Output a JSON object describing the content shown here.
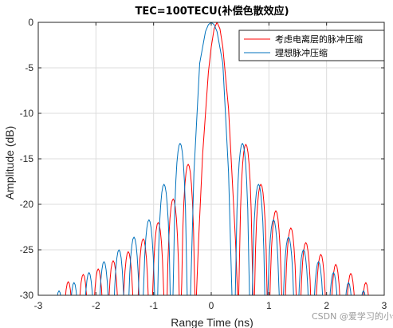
{
  "chart_data": {
    "type": "line",
    "title": "TEC=100TECU(补偿色散效应)",
    "xlabel": "Range Time (ns)",
    "ylabel": "Amplitude (dB)",
    "xlim": [
      -3,
      3
    ],
    "ylim": [
      -30,
      0
    ],
    "xticks": [
      -3,
      -2,
      -1,
      0,
      1,
      2,
      3
    ],
    "yticks": [
      0,
      -5,
      -10,
      -15,
      -20,
      -25,
      -30
    ],
    "xtick_labels": [
      "-3",
      "-2",
      "-1",
      "0",
      "1",
      "2",
      "3"
    ],
    "ytick_labels": [
      "0",
      "-5",
      "-10",
      "-15",
      "-20",
      "-25",
      "-30"
    ],
    "grid": true,
    "legend_position": "top-right",
    "series": [
      {
        "name": "考虑电离层的脉冲压缩",
        "color": "#ff0000",
        "peak_x": 0.1,
        "main_lobe_nulls_x": [
          -0.22,
          0.42
        ],
        "mainlobe_x": [
          -0.22,
          -0.15,
          -0.05,
          0.0,
          0.05,
          0.1,
          0.15,
          0.2,
          0.3,
          0.42
        ],
        "mainlobe_y": [
          -24.0,
          -14.5,
          -5.5,
          -2.7,
          -0.7,
          0.0,
          -0.7,
          -2.7,
          -9.5,
          -24.0
        ],
        "sidelobe_peak_x": [
          -2.48,
          -2.22,
          -1.96,
          -1.7,
          -1.44,
          -1.18,
          -0.92,
          -0.66,
          -0.4,
          0.6,
          0.86,
          1.12,
          1.38,
          1.64,
          1.9,
          2.16,
          2.42,
          2.68
        ],
        "sidelobe_peak_y": [
          -28.5,
          -27.7,
          -27.1,
          -26.2,
          -25.2,
          -23.8,
          -22.0,
          -19.4,
          -15.6,
          -13.4,
          -17.8,
          -20.7,
          -22.6,
          -24.2,
          -25.5,
          -26.6,
          -27.6,
          -28.6
        ]
      },
      {
        "name": "理想脉冲压缩",
        "color": "#0072bd",
        "peak_x": 0.0,
        "main_lobe_nulls_x": [
          -0.36,
          0.36
        ],
        "mainlobe_x": [
          -0.36,
          -0.3,
          -0.2,
          -0.1,
          -0.05,
          0.0,
          0.05,
          0.1,
          0.2,
          0.3,
          0.36
        ],
        "mainlobe_y": [
          -30.0,
          -16.5,
          -4.5,
          -1.0,
          -0.25,
          0.0,
          -0.25,
          -1.0,
          -4.5,
          -16.5,
          -30.0
        ],
        "sidelobe_peak_x": [
          -2.64,
          -2.38,
          -2.12,
          -1.86,
          -1.6,
          -1.34,
          -1.08,
          -0.82,
          -0.54,
          0.54,
          0.82,
          1.08,
          1.34,
          1.6,
          1.86,
          2.12,
          2.38,
          2.64
        ],
        "sidelobe_peak_y": [
          -29.5,
          -28.6,
          -27.5,
          -26.3,
          -25.0,
          -23.6,
          -21.7,
          -17.8,
          -13.3,
          -13.3,
          -17.8,
          -21.7,
          -23.6,
          -25.0,
          -26.3,
          -27.5,
          -28.6,
          -29.5
        ]
      }
    ]
  },
  "watermark": "CSDN @爱学习的小伟"
}
